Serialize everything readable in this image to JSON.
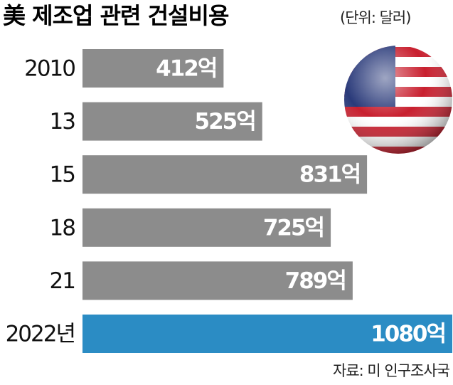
{
  "chart_data": {
    "type": "bar",
    "orientation": "horizontal",
    "title": "美 제조업 관련 건설비용",
    "subtitle": "(단위: 달러)",
    "categories": [
      "2010",
      "13",
      "15",
      "18",
      "21",
      "2022년"
    ],
    "values": [
      412,
      525,
      831,
      725,
      789,
      1080
    ],
    "value_labels": [
      "412억",
      "525억",
      "831억",
      "725억",
      "789억",
      "1080억"
    ],
    "colors": [
      "#8c8c8c",
      "#8c8c8c",
      "#8c8c8c",
      "#8c8c8c",
      "#8c8c8c",
      "#2b8cc4"
    ],
    "source": "자료: 미 인구조사국"
  }
}
